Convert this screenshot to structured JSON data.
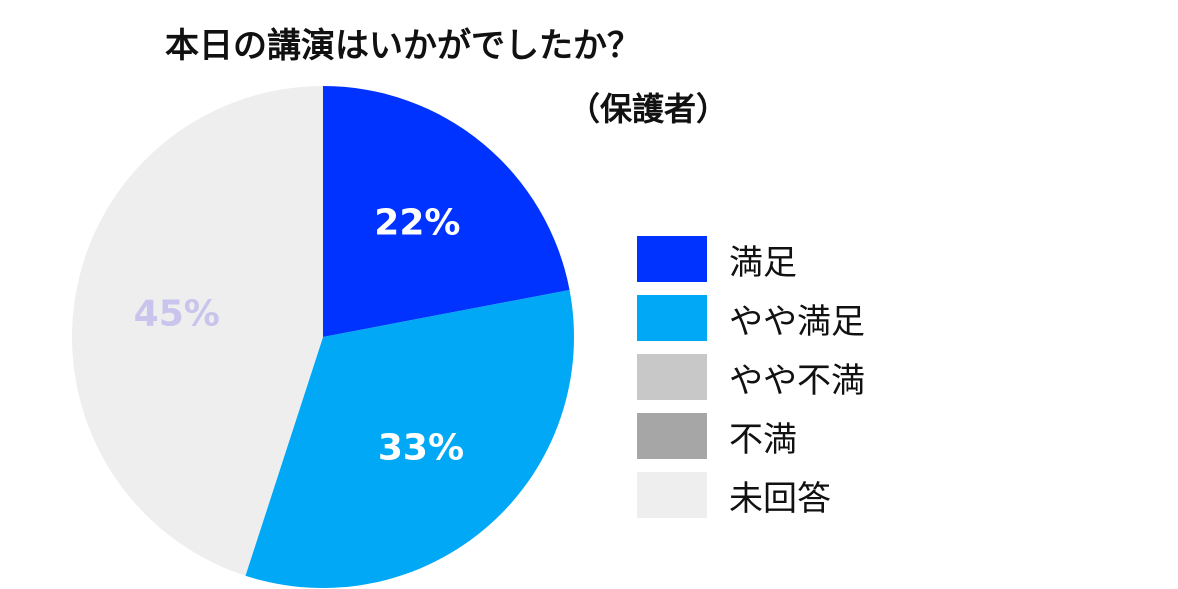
{
  "chart_data": {
    "type": "pie",
    "title": "本日の講演はいかがでしたか？",
    "subtitle": "（保護者）",
    "legend_position": "right",
    "slices": [
      {
        "label": "満足",
        "value": 22,
        "display": "22%",
        "color": "#0033ff",
        "label_color": "#ffffff"
      },
      {
        "label": "やや満足",
        "value": 33,
        "display": "33%",
        "color": "#00a8f5",
        "label_color": "#ffffff"
      },
      {
        "label": "やや不満",
        "value": 0,
        "display": "",
        "color": "#c8c8c8",
        "label_color": "#ffffff"
      },
      {
        "label": "不満",
        "value": 0,
        "display": "",
        "color": "#a6a6a6",
        "label_color": "#ffffff"
      },
      {
        "label": "未回答",
        "value": 45,
        "display": "45%",
        "color": "#eeeeee",
        "label_color": "#c8c4ec"
      }
    ]
  }
}
